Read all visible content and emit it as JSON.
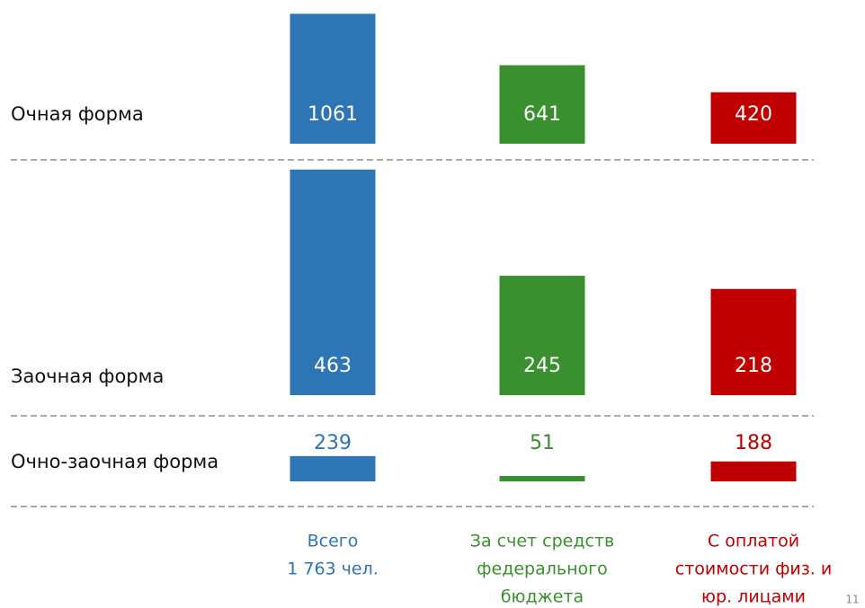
{
  "chart_data": [
    {
      "type": "bar",
      "title": "Очная форма",
      "values": [
        1061,
        641,
        420
      ],
      "ylim": [
        0,
        1100
      ]
    },
    {
      "type": "bar",
      "title": "Заочная форма",
      "values": [
        463,
        245,
        218
      ],
      "ylim": [
        0,
        470
      ]
    },
    {
      "type": "bar",
      "title": "Очно-заочная форма",
      "values": [
        239,
        51,
        188
      ],
      "ylim": [
        0,
        560
      ]
    }
  ],
  "categories": [
    [
      "Всего",
      "1 763 чел."
    ],
    [
      "За счет средств",
      "федерального",
      "бюджета"
    ],
    [
      "С оплатой",
      "стоимости физ. и",
      "юр. лицами"
    ]
  ],
  "colors": [
    "#2e75b6",
    "#3a8f2e",
    "#c00000"
  ],
  "page_number": "11"
}
